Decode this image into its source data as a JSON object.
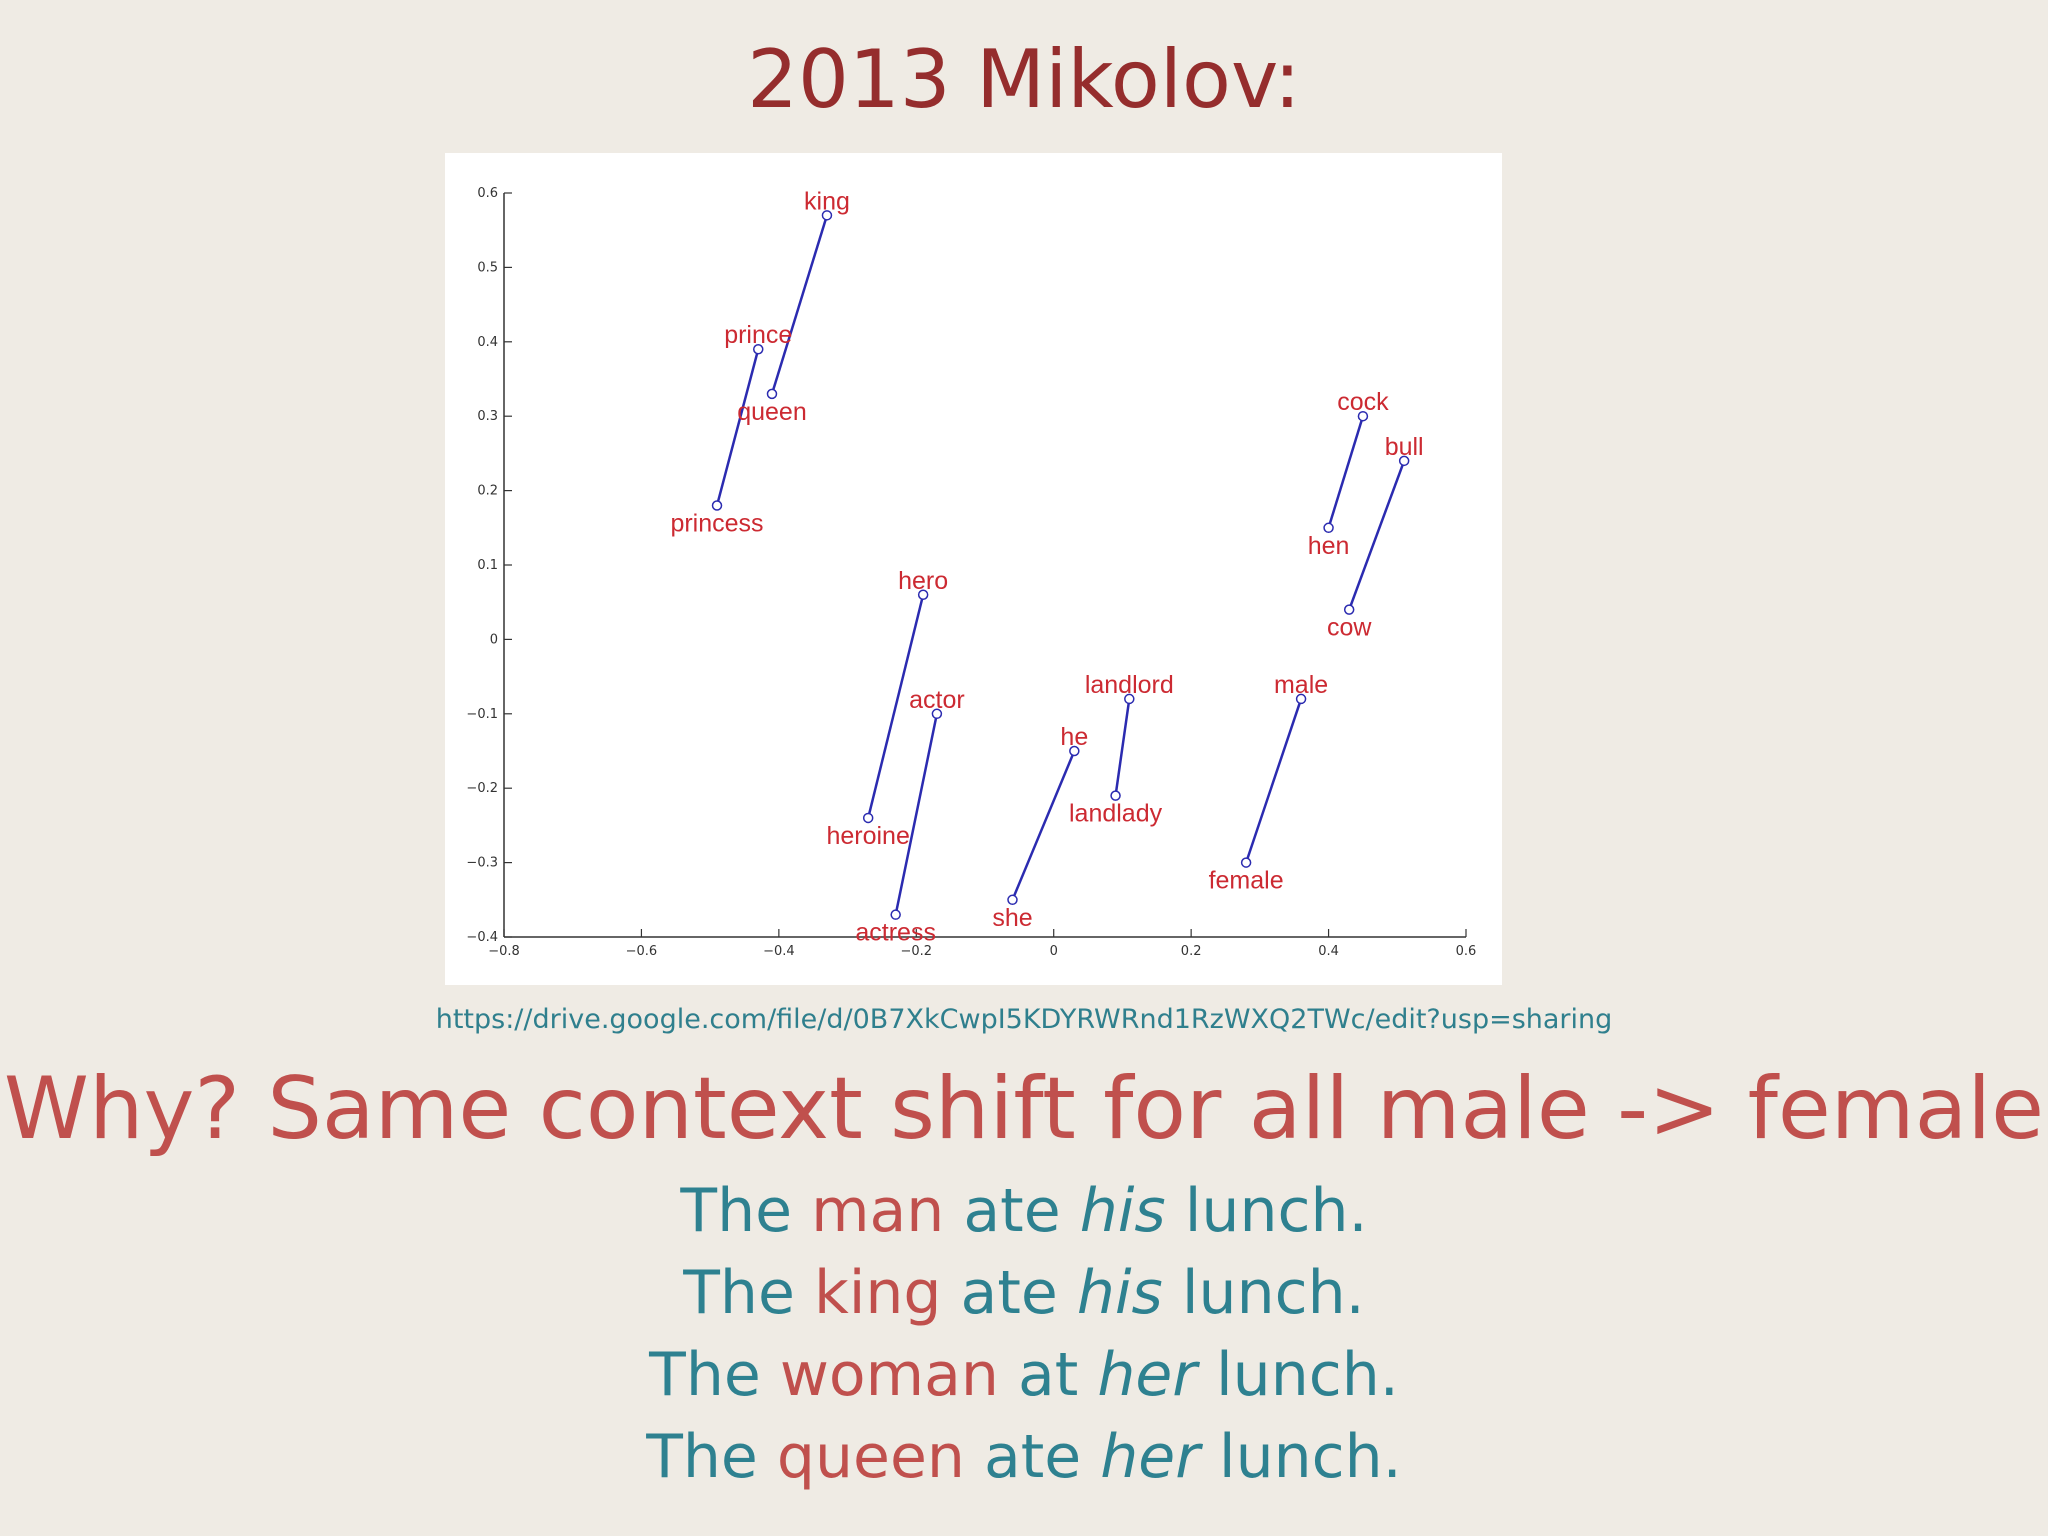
{
  "slide": {
    "title": "2013 Mikolov:",
    "url": "https://drive.google.com/file/d/0B7XkCwpI5KDYRWRnd1RzWXQ2TWc/edit?usp=sharing",
    "headline": "Why? Same context shift for all male -> female",
    "sentences": [
      {
        "pre": "The ",
        "noun": "man",
        "mid": " ate ",
        "pronoun": "his",
        "post": " lunch."
      },
      {
        "pre": "The ",
        "noun": "king",
        "mid": " ate ",
        "pronoun": "his",
        "post": " lunch."
      },
      {
        "pre": "The ",
        "noun": "woman",
        "mid": " at ",
        "pronoun": "her",
        "post": " lunch."
      },
      {
        "pre": "The ",
        "noun": "queen",
        "mid": " ate ",
        "pronoun": "her",
        "post": " lunch."
      }
    ]
  },
  "colors": {
    "title": "#952d2d",
    "headline": "#c0504d",
    "teal": "#2e8190",
    "point_label": "#cc2a32",
    "pair_line": "#2b2bb0",
    "background": "#efebe4"
  },
  "chart_data": {
    "type": "scatter",
    "xlim": [
      -0.8,
      0.6
    ],
    "ylim": [
      -0.4,
      0.6
    ],
    "xticks": [
      "-0.8",
      "-0.6",
      "-0.4",
      "-0.2",
      "0",
      "0.2",
      "0.4",
      "0.6"
    ],
    "yticks": [
      "-0.4",
      "-0.3",
      "-0.2",
      "-0.1",
      "0",
      "0.1",
      "0.2",
      "0.3",
      "0.4",
      "0.5",
      "0.6"
    ],
    "grid": false,
    "points": [
      {
        "label": "king",
        "x": -0.33,
        "y": 0.57
      },
      {
        "label": "queen",
        "x": -0.41,
        "y": 0.33
      },
      {
        "label": "prince",
        "x": -0.43,
        "y": 0.39
      },
      {
        "label": "princess",
        "x": -0.49,
        "y": 0.18
      },
      {
        "label": "hero",
        "x": -0.19,
        "y": 0.06
      },
      {
        "label": "heroine",
        "x": -0.27,
        "y": -0.24
      },
      {
        "label": "actor",
        "x": -0.17,
        "y": -0.1
      },
      {
        "label": "actress",
        "x": -0.23,
        "y": -0.37
      },
      {
        "label": "he",
        "x": 0.03,
        "y": -0.15
      },
      {
        "label": "she",
        "x": -0.06,
        "y": -0.35
      },
      {
        "label": "landlord",
        "x": 0.11,
        "y": -0.08
      },
      {
        "label": "landlady",
        "x": 0.09,
        "y": -0.21
      },
      {
        "label": "male",
        "x": 0.36,
        "y": -0.08
      },
      {
        "label": "female",
        "x": 0.28,
        "y": -0.3
      },
      {
        "label": "cock",
        "x": 0.45,
        "y": 0.3
      },
      {
        "label": "hen",
        "x": 0.4,
        "y": 0.15
      },
      {
        "label": "bull",
        "x": 0.51,
        "y": 0.24
      },
      {
        "label": "cow",
        "x": 0.43,
        "y": 0.04
      }
    ],
    "pairs": [
      [
        "king",
        "queen"
      ],
      [
        "prince",
        "princess"
      ],
      [
        "hero",
        "heroine"
      ],
      [
        "actor",
        "actress"
      ],
      [
        "he",
        "she"
      ],
      [
        "landlord",
        "landlady"
      ],
      [
        "male",
        "female"
      ],
      [
        "cock",
        "hen"
      ],
      [
        "bull",
        "cow"
      ]
    ]
  }
}
